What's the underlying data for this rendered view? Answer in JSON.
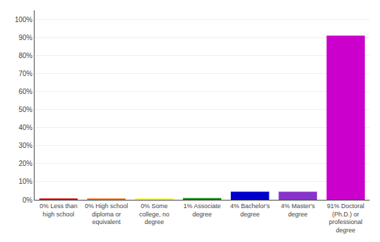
{
  "chart_data": {
    "type": "bar",
    "categories": [
      "0% Less than\nhigh school",
      "0% High school\ndiploma or\nequivalent",
      "0% Some\ncollege, no\ndegree",
      "1% Associate\ndegree",
      "4% Bachelor's\ndegree",
      "4% Master's\ndegree",
      "91% Doctoral\n(Ph.D.) or\nprofessional\ndegree"
    ],
    "values": [
      0.4,
      0.4,
      0.4,
      1.0,
      4.5,
      4.5,
      91
    ],
    "colors": [
      "#dd0000",
      "#ff6600",
      "#ffff00",
      "#008800",
      "#0000cc",
      "#8833cc",
      "#cc00cc"
    ],
    "ylim": [
      0,
      105
    ],
    "yticks": [
      {
        "value": 0,
        "label": "0%"
      },
      {
        "value": 10,
        "label": "10%"
      },
      {
        "value": 20,
        "label": "20%"
      },
      {
        "value": 30,
        "label": "30%"
      },
      {
        "value": 40,
        "label": "40%"
      },
      {
        "value": 50,
        "label": "50%"
      },
      {
        "value": 60,
        "label": "60%"
      },
      {
        "value": 70,
        "label": "70%"
      },
      {
        "value": 80,
        "label": "80%"
      },
      {
        "value": 90,
        "label": "90%"
      },
      {
        "value": 100,
        "label": "100%"
      }
    ],
    "grid": true
  }
}
